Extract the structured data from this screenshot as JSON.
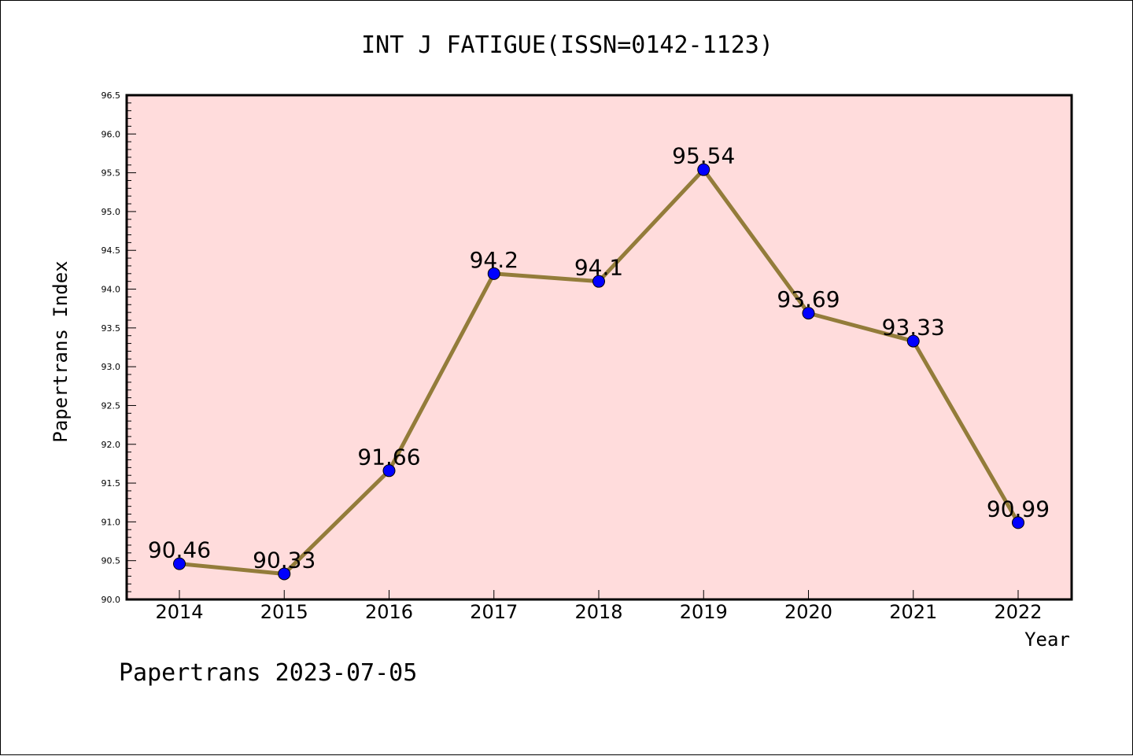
{
  "chart_data": {
    "type": "line",
    "title": "INT J FATIGUE(ISSN=0142-1123)",
    "xlabel": "Year",
    "ylabel": "Papertrans Index",
    "categories": [
      "2014",
      "2015",
      "2016",
      "2017",
      "2018",
      "2019",
      "2020",
      "2021",
      "2022"
    ],
    "series": [
      {
        "values": [
          90.46,
          90.33,
          91.66,
          94.2,
          94.1,
          95.54,
          93.69,
          93.33,
          90.99
        ],
        "labels": [
          "90.46",
          "90.33",
          "91.66",
          "94.2",
          "94.1",
          "95.54",
          "93.69",
          "93.33",
          "90.99"
        ]
      }
    ],
    "ylim": [
      90.0,
      96.5
    ],
    "yticks": [
      "90.0",
      "90.5",
      "91.0",
      "91.5",
      "92.0",
      "92.5",
      "93.0",
      "93.5",
      "94.0",
      "94.5",
      "95.0",
      "95.5",
      "96.0",
      "96.5"
    ],
    "grid": false,
    "colors": {
      "plot_background": "#FFDCDC",
      "line": "#937C3A",
      "marker": "#0000FF",
      "axis": "#000000"
    },
    "footer": "Papertrans 2023-07-05"
  }
}
